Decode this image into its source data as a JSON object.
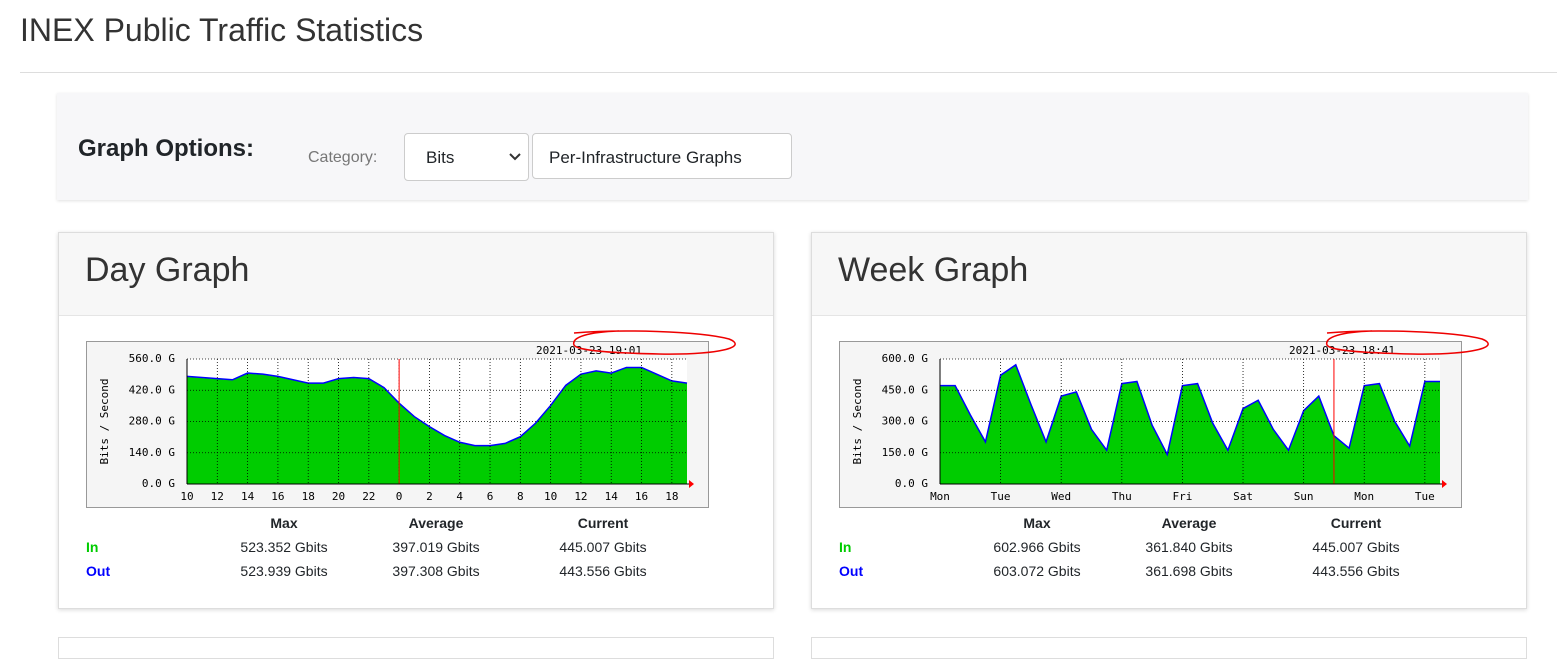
{
  "header": {
    "title": "INEX Public Traffic Statistics"
  },
  "options": {
    "heading": "Graph Options:",
    "category_label": "Category:",
    "category_value": "Bits",
    "button": "Per-Infrastructure Graphs"
  },
  "panels": [
    {
      "title": "Day Graph",
      "chart": {
        "type": "area",
        "timestamp": "2021-03-23 19:01",
        "y_label": "Bits / Second",
        "categories": [
          "10",
          null,
          "12",
          null,
          "14",
          null,
          "16",
          null,
          "18",
          null,
          "20",
          null,
          "22",
          null,
          "0",
          null,
          "2",
          null,
          "4",
          null,
          "6",
          null,
          "8",
          null,
          "10",
          null,
          "12",
          null,
          "14",
          null,
          "16",
          null,
          "18",
          null
        ],
        "ylim": [
          0,
          560
        ],
        "yticks": [
          {
            "value": 0,
            "label": "0.0 G"
          },
          {
            "value": 140,
            "label": "140.0 G"
          },
          {
            "value": 280,
            "label": "280.0 G"
          },
          {
            "value": 420,
            "label": "420.0 G"
          },
          {
            "value": 560,
            "label": "560.0 G"
          }
        ],
        "series": [
          {
            "name": "In",
            "color": "#00cc00",
            "values": [
              480,
              475,
              470,
              465,
              495,
              490,
              480,
              465,
              450,
              450,
              470,
              475,
              470,
              430,
              360,
              300,
              255,
              215,
              185,
              170,
              170,
              180,
              210,
              270,
              350,
              440,
              490,
              505,
              495,
              520,
              520,
              490,
              460,
              450
            ]
          },
          {
            "name": "Out",
            "color": "#0000ff",
            "values": [
              482,
              477,
              472,
              467,
              497,
              492,
              482,
              467,
              452,
              452,
              472,
              477,
              472,
              432,
              362,
              302,
              257,
              217,
              187,
              172,
              172,
              182,
              212,
              272,
              352,
              442,
              492,
              507,
              497,
              522,
              522,
              492,
              462,
              452
            ]
          }
        ]
      },
      "stats": {
        "columns": [
          "Max",
          "Average",
          "Current"
        ],
        "rows": [
          [
            "523.352 Gbits",
            "397.019 Gbits",
            "445.007 Gbits"
          ],
          [
            "523.939 Gbits",
            "397.308 Gbits",
            "443.556 Gbits"
          ]
        ]
      }
    },
    {
      "title": "Week Graph",
      "chart": {
        "type": "area",
        "timestamp": "2021-03-23 18:41",
        "y_label": "Bits / Second",
        "categories": [
          "Mon",
          null,
          null,
          null,
          "Tue",
          null,
          null,
          null,
          "Wed",
          null,
          null,
          null,
          "Thu",
          null,
          null,
          null,
          "Fri",
          null,
          null,
          null,
          "Sat",
          null,
          null,
          null,
          "Sun",
          null,
          null,
          null,
          "Mon",
          null,
          null,
          null,
          "Tue",
          null
        ],
        "ylim": [
          0,
          600
        ],
        "yticks": [
          {
            "value": 0,
            "label": "0.0 G"
          },
          {
            "value": 150,
            "label": "150.0 G"
          },
          {
            "value": 300,
            "label": "300.0 G"
          },
          {
            "value": 450,
            "label": "450.0 G"
          },
          {
            "value": 600,
            "label": "600.0 G"
          }
        ],
        "series": [
          {
            "name": "In",
            "color": "#00cc00",
            "values": [
              470,
              470,
              330,
              200,
              520,
              570,
              380,
              200,
              420,
              440,
              260,
              160,
              480,
              490,
              280,
              140,
              470,
              480,
              290,
              160,
              360,
              400,
              260,
              160,
              350,
              420,
              230,
              170,
              470,
              480,
              300,
              180,
              490,
              490
            ]
          },
          {
            "name": "Out",
            "color": "#0000ff",
            "values": [
              472,
              472,
              332,
              202,
              522,
              572,
              382,
              202,
              422,
              442,
              262,
              162,
              482,
              492,
              282,
              142,
              472,
              482,
              292,
              162,
              362,
              402,
              262,
              162,
              352,
              422,
              232,
              172,
              472,
              482,
              302,
              182,
              492,
              492
            ]
          }
        ]
      },
      "stats": {
        "columns": [
          "Max",
          "Average",
          "Current"
        ],
        "rows": [
          [
            "602.966 Gbits",
            "361.840 Gbits",
            "445.007 Gbits"
          ],
          [
            "603.072 Gbits",
            "361.698 Gbits",
            "443.556 Gbits"
          ]
        ]
      }
    }
  ]
}
